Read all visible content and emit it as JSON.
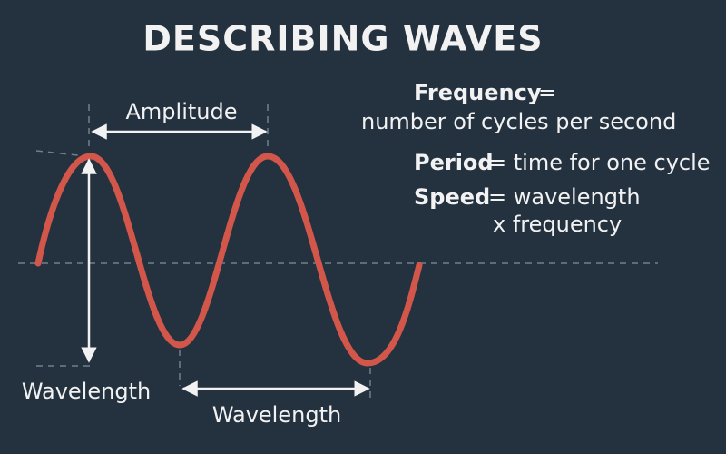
{
  "title": "DESCRIBING WAVES",
  "labels": {
    "amplitude": "Amplitude",
    "wavelength_left": "Wavelength",
    "wavelength_bottom": "Wavelength"
  },
  "definitions": [
    {
      "term": "Frequency",
      "lines": [
        "=",
        "number of cycles per second"
      ]
    },
    {
      "term": "Period",
      "lines": [
        "= time for one cycle"
      ]
    },
    {
      "term": "Speed",
      "lines": [
        "= wavelength",
        "x frequency"
      ]
    }
  ]
}
